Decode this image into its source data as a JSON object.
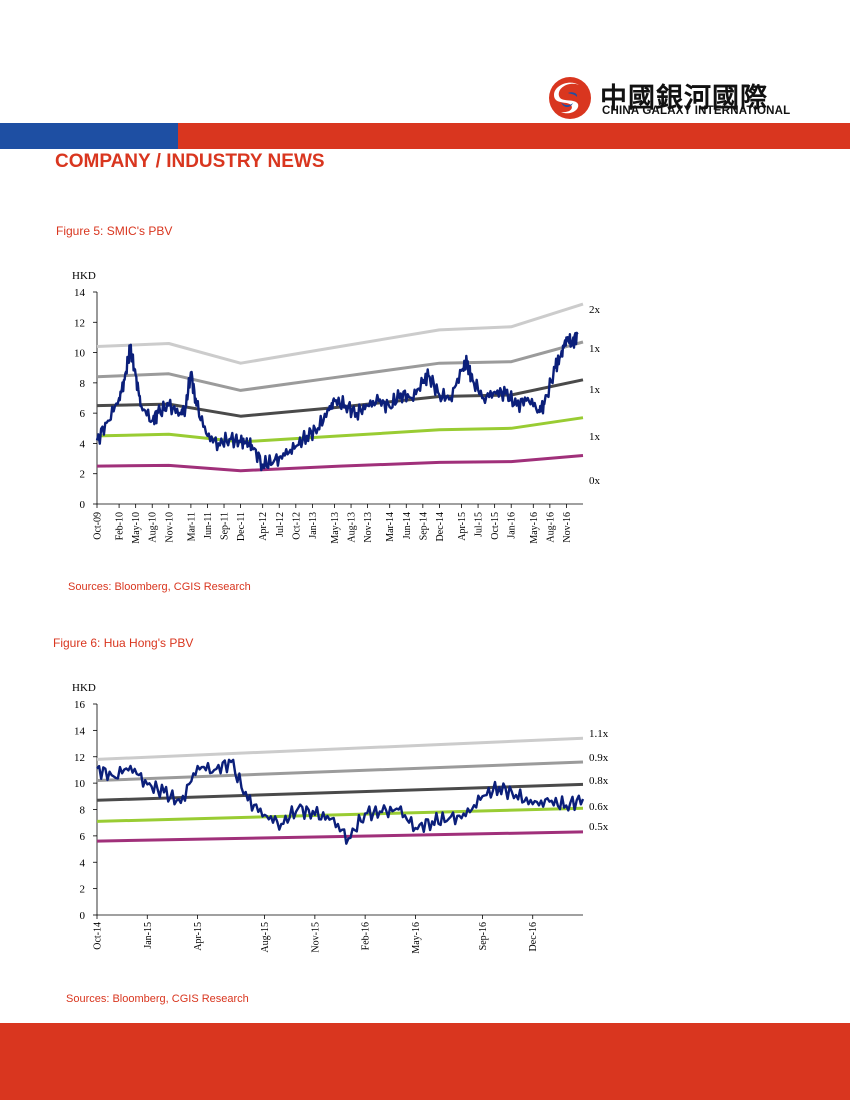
{
  "header": {
    "logo_cn": "中國銀河國際",
    "logo_en": "CHINA GALAXY INTERNATIONAL",
    "section_title": "COMPANY / INDUSTRY NEWS",
    "colors": {
      "blue": "#1e4fa3",
      "red": "#d9361f"
    }
  },
  "figures": [
    {
      "title": "Figure 5: SMIC's PBV",
      "source": "Sources: Bloomberg, CGIS Research"
    },
    {
      "title": "Figure 6: Hua Hong's PBV",
      "source": "Sources: Bloomberg, CGIS Research"
    }
  ],
  "chart_data": [
    {
      "type": "line",
      "ylabel": "HKD",
      "ylim": [
        0,
        14
      ],
      "yticks": [
        0,
        2,
        4,
        6,
        8,
        10,
        12,
        14
      ],
      "xlim": [
        "2009-10",
        "2017-02"
      ],
      "xticks": [
        "Oct-09",
        "Feb-10",
        "May-10",
        "Aug-10",
        "Nov-10",
        "Mar-11",
        "Jun-11",
        "Sep-11",
        "Dec-11",
        "Apr-12",
        "Jul-12",
        "Oct-12",
        "Jan-13",
        "May-13",
        "Aug-13",
        "Nov-13",
        "Mar-14",
        "Jun-14",
        "Sep-14",
        "Dec-14",
        "Apr-15",
        "Jul-15",
        "Oct-15",
        "Jan-16",
        "May-16",
        "Aug-16",
        "Nov-16"
      ],
      "band_labels": [
        "2x",
        "1x",
        "1x",
        "1x",
        "0x"
      ],
      "bands": [
        {
          "color": "#cccccc",
          "x": [
            "2009-10",
            "2010-11",
            "2011-12",
            "2013-06",
            "2014-12",
            "2016-01",
            "2017-02"
          ],
          "values": [
            10.4,
            10.6,
            9.3,
            10.4,
            11.5,
            11.7,
            13.2
          ]
        },
        {
          "color": "#9b9b9b",
          "x": [
            "2009-10",
            "2010-11",
            "2011-12",
            "2013-06",
            "2014-12",
            "2016-01",
            "2017-02"
          ],
          "values": [
            8.4,
            8.6,
            7.5,
            8.4,
            9.3,
            9.4,
            10.7
          ]
        },
        {
          "color": "#4a4a4a",
          "x": [
            "2009-10",
            "2010-11",
            "2011-12",
            "2013-06",
            "2014-12",
            "2016-01",
            "2017-02"
          ],
          "values": [
            6.5,
            6.6,
            5.8,
            6.4,
            7.1,
            7.2,
            8.2
          ]
        },
        {
          "color": "#99cc33",
          "x": [
            "2009-10",
            "2010-11",
            "2011-12",
            "2013-06",
            "2014-12",
            "2016-01",
            "2017-02"
          ],
          "values": [
            4.5,
            4.6,
            4.1,
            4.5,
            4.9,
            5.0,
            5.7
          ]
        },
        {
          "color": "#a0307a",
          "x": [
            "2009-10",
            "2010-11",
            "2011-12",
            "2013-06",
            "2014-12",
            "2016-01",
            "2017-02"
          ],
          "values": [
            2.5,
            2.55,
            2.2,
            2.5,
            2.75,
            2.8,
            3.2
          ]
        }
      ],
      "price": {
        "color": "#0b1f7a",
        "x": [
          "2009-10",
          "2009-12",
          "2010-02",
          "2010-03",
          "2010-04",
          "2010-05",
          "2010-06",
          "2010-08",
          "2010-09",
          "2010-11",
          "2011-01",
          "2011-02",
          "2011-03",
          "2011-04",
          "2011-06",
          "2011-08",
          "2011-10",
          "2011-12",
          "2012-01",
          "2012-02",
          "2012-04",
          "2012-06",
          "2012-08",
          "2012-10",
          "2012-12",
          "2013-02",
          "2013-04",
          "2013-05",
          "2013-07",
          "2013-09",
          "2013-11",
          "2014-01",
          "2014-03",
          "2014-05",
          "2014-07",
          "2014-09",
          "2014-10",
          "2014-12",
          "2015-02",
          "2015-04",
          "2015-05",
          "2015-06",
          "2015-08",
          "2015-10",
          "2015-12",
          "2016-02",
          "2016-04",
          "2016-06",
          "2016-07",
          "2016-09",
          "2016-10",
          "2016-11",
          "2016-12",
          "2017-01"
        ],
        "values": [
          4.2,
          5.5,
          7.0,
          8.2,
          10.3,
          8.5,
          6.5,
          5.5,
          6.0,
          6.5,
          6.0,
          6.3,
          8.7,
          6.5,
          4.5,
          4.0,
          4.3,
          4.1,
          4.0,
          3.9,
          2.6,
          2.8,
          3.2,
          3.8,
          4.5,
          5.0,
          6.2,
          6.8,
          6.5,
          6.0,
          6.5,
          6.8,
          6.4,
          7.3,
          7.0,
          8.0,
          8.5,
          7.2,
          7.0,
          8.8,
          9.3,
          8.2,
          7.0,
          7.4,
          7.3,
          6.5,
          7.0,
          6.2,
          6.6,
          9.0,
          9.8,
          11.0,
          10.6,
          11.2
        ]
      }
    },
    {
      "type": "line",
      "ylabel": "HKD",
      "ylim": [
        0,
        16
      ],
      "yticks": [
        0,
        2,
        4,
        6,
        8,
        10,
        12,
        14,
        16
      ],
      "xlim": [
        "2014-10",
        "2017-03"
      ],
      "xticks": [
        "Oct-14",
        "Jan-15",
        "Apr-15",
        "Aug-15",
        "Nov-15",
        "Feb-16",
        "May-16",
        "Sep-16",
        "Dec-16"
      ],
      "band_labels": [
        "1.1x",
        "0.9x",
        "0.8x",
        "0.6x",
        "0.5x"
      ],
      "bands": [
        {
          "color": "#cccccc",
          "x": [
            "2014-10",
            "2017-03"
          ],
          "values": [
            11.8,
            13.4
          ]
        },
        {
          "color": "#9b9b9b",
          "x": [
            "2014-10",
            "2017-03"
          ],
          "values": [
            10.2,
            11.6
          ]
        },
        {
          "color": "#4a4a4a",
          "x": [
            "2014-10",
            "2017-03"
          ],
          "values": [
            8.7,
            9.9
          ]
        },
        {
          "color": "#99cc33",
          "x": [
            "2014-10",
            "2017-03"
          ],
          "values": [
            7.1,
            8.1
          ]
        },
        {
          "color": "#a0307a",
          "x": [
            "2014-10",
            "2017-03"
          ],
          "values": [
            5.6,
            6.3
          ]
        }
      ],
      "price": {
        "color": "#0b1f7a",
        "x": [
          "2014-10",
          "2014-11",
          "2014-12",
          "2015-01",
          "2015-02",
          "2015-03",
          "2015-04",
          "2015-05",
          "2015-06",
          "2015-07",
          "2015-08",
          "2015-09",
          "2015-10",
          "2015-11",
          "2015-12",
          "2016-01",
          "2016-02",
          "2016-03",
          "2016-04",
          "2016-05",
          "2016-06",
          "2016-07",
          "2016-08",
          "2016-09",
          "2016-10",
          "2016-11",
          "2016-12",
          "2017-01",
          "2017-02",
          "2017-03"
        ],
        "values": [
          11.1,
          10.5,
          11.3,
          9.9,
          9.3,
          8.5,
          11.3,
          11.0,
          11.6,
          8.7,
          7.6,
          6.9,
          8.1,
          7.6,
          7.3,
          5.8,
          7.7,
          7.8,
          8.0,
          6.6,
          7.1,
          7.3,
          7.5,
          9.0,
          9.7,
          9.1,
          8.4,
          8.6,
          8.3,
          8.8
        ]
      }
    }
  ]
}
